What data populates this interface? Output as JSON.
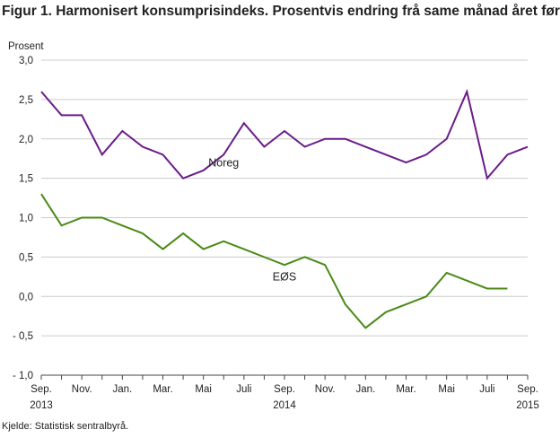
{
  "title": "Figur 1. Harmonisert konsumprisindeks. Prosentvis endring frå same månad året før",
  "source": "Kjelde: Statistisk sentralbyrå.",
  "colors": {
    "noreg": "#6a1b8a",
    "eos": "#4a8a17",
    "grid": "#cccccc",
    "axis": "#444444"
  },
  "chart_data": {
    "type": "line",
    "title": "Figur 1. Harmonisert konsumprisindeks. Prosentvis endring frå same månad året før",
    "ylabel": "Prosent",
    "xlabel": "",
    "ylim": [
      -1.0,
      3.0
    ],
    "y_ticks": [
      "3,0",
      "2,5",
      "2,0",
      "1,5",
      "1,0",
      "0,5",
      "0,0",
      "- 0,5",
      "- 1,0"
    ],
    "y_tick_values": [
      3.0,
      2.5,
      2.0,
      1.5,
      1.0,
      0.5,
      0.0,
      -0.5,
      -1.0
    ],
    "grid": true,
    "legend": "none",
    "x": [
      "2013-09",
      "2013-10",
      "2013-11",
      "2013-12",
      "2014-01",
      "2014-02",
      "2014-03",
      "2014-04",
      "2014-05",
      "2014-06",
      "2014-07",
      "2014-08",
      "2014-09",
      "2014-10",
      "2014-11",
      "2014-12",
      "2015-01",
      "2015-02",
      "2015-03",
      "2015-04",
      "2015-05",
      "2015-06",
      "2015-07",
      "2015-08",
      "2015-09"
    ],
    "x_tick_labels": [
      {
        "i": 0,
        "month": "Sep.",
        "year": "2013"
      },
      {
        "i": 2,
        "month": "Nov.",
        "year": ""
      },
      {
        "i": 4,
        "month": "Jan.",
        "year": ""
      },
      {
        "i": 6,
        "month": "Mar.",
        "year": ""
      },
      {
        "i": 8,
        "month": "Mai",
        "year": ""
      },
      {
        "i": 10,
        "month": "Juli",
        "year": ""
      },
      {
        "i": 12,
        "month": "Sep.",
        "year": "2014"
      },
      {
        "i": 14,
        "month": "Nov.",
        "year": ""
      },
      {
        "i": 16,
        "month": "Jan.",
        "year": ""
      },
      {
        "i": 18,
        "month": "Mar.",
        "year": ""
      },
      {
        "i": 20,
        "month": "Mai",
        "year": ""
      },
      {
        "i": 22,
        "month": "Juli",
        "year": ""
      },
      {
        "i": 24,
        "month": "Sep.",
        "year": "2015"
      }
    ],
    "series": [
      {
        "name": "Noreg",
        "label_at": {
          "x": "2014-06",
          "y": 1.65
        },
        "values": [
          2.6,
          2.3,
          2.3,
          1.8,
          2.1,
          1.9,
          1.8,
          1.5,
          1.6,
          1.8,
          2.2,
          1.9,
          2.1,
          1.9,
          2.0,
          2.0,
          1.9,
          1.8,
          1.7,
          1.8,
          2.0,
          2.6,
          1.5,
          1.8,
          1.9
        ]
      },
      {
        "name": "EØS",
        "label_at": {
          "x": "2014-09",
          "y": 0.2
        },
        "values": [
          1.3,
          0.9,
          1.0,
          1.0,
          0.9,
          0.8,
          0.6,
          0.8,
          0.6,
          0.7,
          0.6,
          0.5,
          0.4,
          0.5,
          0.4,
          -0.1,
          -0.4,
          -0.2,
          -0.1,
          0.0,
          0.3,
          0.2,
          0.1,
          0.1,
          null
        ]
      }
    ]
  }
}
